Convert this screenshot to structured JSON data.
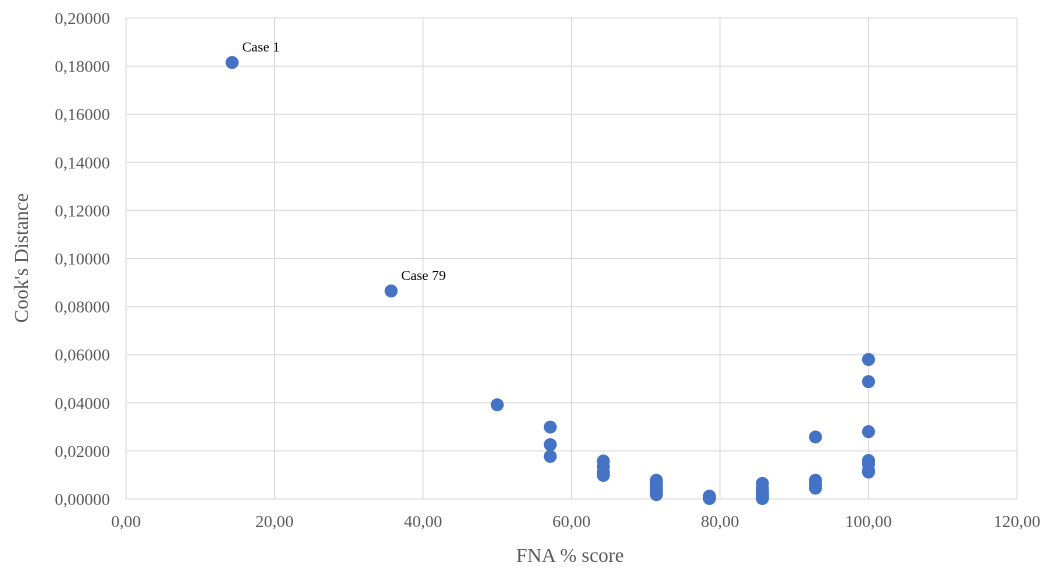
{
  "chart_data": {
    "type": "scatter",
    "title": "",
    "xlabel": "FNA % score",
    "ylabel": "Cook's Distance",
    "xlim": [
      0,
      120
    ],
    "ylim": [
      0,
      0.2
    ],
    "x_ticks": [
      "0,00",
      "20,00",
      "40,00",
      "60,00",
      "80,00",
      "100,00",
      "120,00"
    ],
    "y_ticks": [
      "0,00000",
      "0,02000",
      "0,04000",
      "0,06000",
      "0,08000",
      "0,10000",
      "0,12000",
      "0,14000",
      "0,16000",
      "0,18000",
      "0,20000"
    ],
    "x_tick_values": [
      0,
      20,
      40,
      60,
      80,
      100,
      120
    ],
    "y_tick_values": [
      0,
      0.02,
      0.04,
      0.06,
      0.08,
      0.1,
      0.12,
      0.14,
      0.16,
      0.18,
      0.2
    ],
    "grid": true,
    "series": [
      {
        "color": "#4472c4",
        "points": [
          [
            14.29,
            0.1815
          ],
          [
            35.71,
            0.0865
          ],
          [
            50.0,
            0.0392
          ],
          [
            57.14,
            0.0299
          ],
          [
            57.14,
            0.0226
          ],
          [
            57.14,
            0.0177
          ],
          [
            64.29,
            0.0158
          ],
          [
            64.29,
            0.0135
          ],
          [
            64.29,
            0.0112
          ],
          [
            64.29,
            0.0098
          ],
          [
            71.43,
            0.0078
          ],
          [
            71.43,
            0.0065
          ],
          [
            71.43,
            0.0052
          ],
          [
            71.43,
            0.004
          ],
          [
            71.43,
            0.0028
          ],
          [
            71.43,
            0.0018
          ],
          [
            78.57,
            0.0012
          ],
          [
            78.57,
            0.0006
          ],
          [
            78.57,
            0.0002
          ],
          [
            85.71,
            0.0065
          ],
          [
            85.71,
            0.0045
          ],
          [
            85.71,
            0.003
          ],
          [
            85.71,
            0.0018
          ],
          [
            85.71,
            0.0008
          ],
          [
            85.71,
            0.0002
          ],
          [
            92.86,
            0.0258
          ],
          [
            92.86,
            0.0078
          ],
          [
            92.86,
            0.006
          ],
          [
            92.86,
            0.0045
          ],
          [
            100.0,
            0.058
          ],
          [
            100.0,
            0.0488
          ],
          [
            100.0,
            0.028
          ],
          [
            100.0,
            0.016
          ],
          [
            100.0,
            0.0145
          ],
          [
            100.0,
            0.0118
          ],
          [
            100.0,
            0.0112
          ]
        ]
      }
    ],
    "annotations": [
      {
        "text": "Case 1",
        "x": 14.29,
        "y": 0.1815
      },
      {
        "text": "Case 79",
        "x": 35.71,
        "y": 0.0865
      }
    ]
  }
}
